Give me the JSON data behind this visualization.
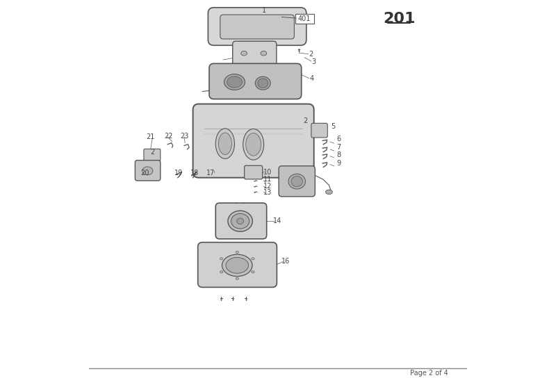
{
  "page_number": "Page 2 of 4",
  "diagram_number": "201",
  "bg_color": "#ffffff",
  "line_color": "#555555",
  "text_color": "#444444"
}
